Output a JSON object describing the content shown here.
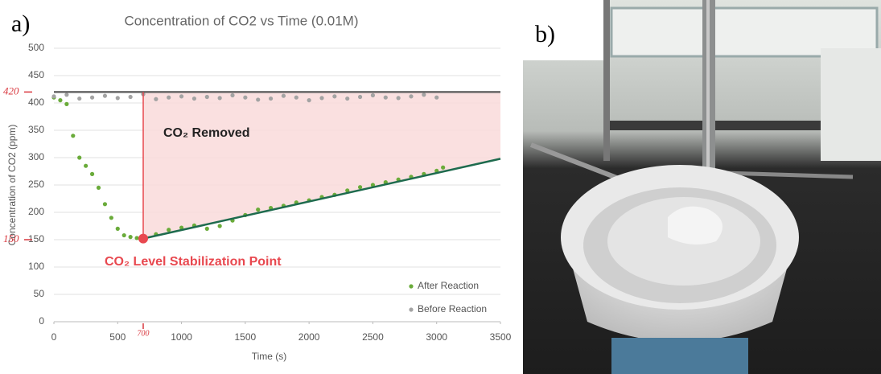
{
  "panel_labels": [
    "a)",
    "b)"
  ],
  "chart_data": {
    "type": "scatter",
    "title": "Concentration of CO2 vs Time (0.01M)",
    "x_label": "Time (s)",
    "y_label": "Concentration of CO2 (ppm)",
    "xlim": [
      0,
      3500
    ],
    "ylim": [
      0,
      500
    ],
    "xticks": [
      0,
      500,
      1000,
      1500,
      2000,
      2500,
      3000,
      3500
    ],
    "yticks": [
      0,
      50,
      100,
      150,
      200,
      250,
      300,
      350,
      400,
      450,
      500
    ],
    "grid": true,
    "legend": "lower right",
    "series": [
      {
        "name": "After Reaction",
        "color": "#6aab3a",
        "x": [
          0,
          50,
          100,
          150,
          200,
          250,
          300,
          350,
          400,
          450,
          500,
          550,
          600,
          650,
          700,
          800,
          900,
          1000,
          1100,
          1200,
          1300,
          1400,
          1500,
          1600,
          1700,
          1800,
          1900,
          2000,
          2100,
          2200,
          2300,
          2400,
          2500,
          2600,
          2700,
          2800,
          2900,
          3000,
          3050
        ],
        "values": [
          410,
          405,
          398,
          340,
          300,
          285,
          270,
          245,
          215,
          190,
          170,
          158,
          155,
          153,
          154,
          160,
          168,
          172,
          176,
          170,
          175,
          185,
          195,
          205,
          208,
          212,
          218,
          222,
          228,
          232,
          240,
          246,
          250,
          255,
          260,
          265,
          270,
          276,
          282
        ]
      },
      {
        "name": "Before Reaction",
        "color": "#a3a3a3",
        "x": [
          0,
          100,
          200,
          300,
          400,
          500,
          600,
          700,
          800,
          900,
          1000,
          1100,
          1200,
          1300,
          1400,
          1500,
          1600,
          1700,
          1800,
          1900,
          2000,
          2100,
          2200,
          2300,
          2400,
          2500,
          2600,
          2700,
          2800,
          2900,
          3000
        ],
        "values": [
          412,
          415,
          408,
          410,
          413,
          409,
          411,
          416,
          407,
          410,
          412,
          408,
          411,
          409,
          414,
          410,
          406,
          408,
          413,
          410,
          405,
          409,
          412,
          408,
          411,
          414,
          410,
          409,
          412,
          415,
          410
        ]
      }
    ],
    "trendline": {
      "color": "#1e6b4e",
      "x": [
        700,
        3500
      ],
      "values": [
        152,
        298
      ]
    },
    "reference_line": {
      "value": 420,
      "color": "#666666"
    },
    "stabilization_point": {
      "x": 700,
      "y": 152,
      "color": "#e8484f"
    },
    "shaded_area_color": "#f9dada",
    "annotations": [
      "CO₂ Removed",
      "CO₂ Level Stabilization Point"
    ],
    "hand_marks": {
      "y": [
        {
          "value": 420,
          "label": "420"
        },
        {
          "value": 150,
          "label": "150"
        }
      ],
      "x": [
        {
          "value": 700,
          "label": "700"
        }
      ]
    }
  }
}
